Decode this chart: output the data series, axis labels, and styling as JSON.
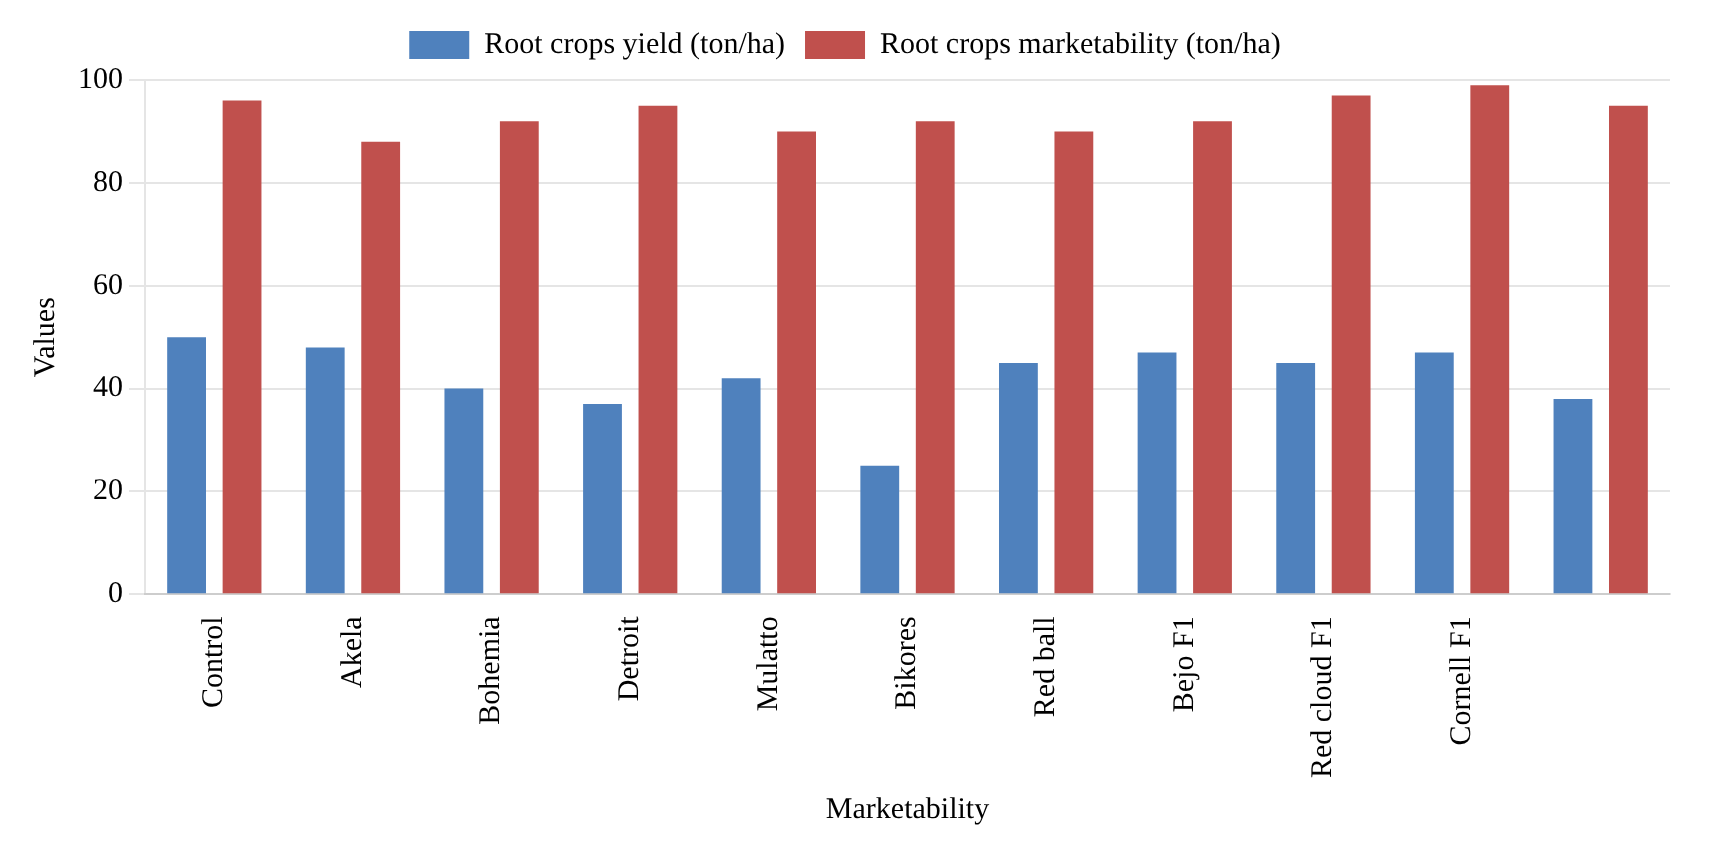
{
  "chart_data": {
    "type": "bar",
    "xlabel": "Marketability",
    "ylabel": "Values",
    "categories": [
      "Control",
      "Akela",
      "Bohemia",
      "Detroit",
      "Mulatto",
      "Bikores",
      "Red ball",
      "Bejo F1",
      "Red cloud F1",
      "Cornell F1",
      null
    ],
    "series": [
      {
        "name": "Root crops yield (ton/ha)",
        "color": "#4f81bd",
        "values": [
          50,
          48,
          40,
          37,
          42,
          25,
          45,
          47,
          45,
          47,
          38
        ]
      },
      {
        "name": "Root crops marketability (ton/ha)",
        "color": "#c0504d",
        "values": [
          96,
          88,
          92,
          95,
          90,
          92,
          90,
          92,
          97,
          99,
          95
        ]
      }
    ],
    "ylim": [
      0,
      100
    ],
    "yticks": [
      0,
      20,
      40,
      60,
      80,
      100
    ],
    "grid": "y",
    "legend": "top"
  }
}
